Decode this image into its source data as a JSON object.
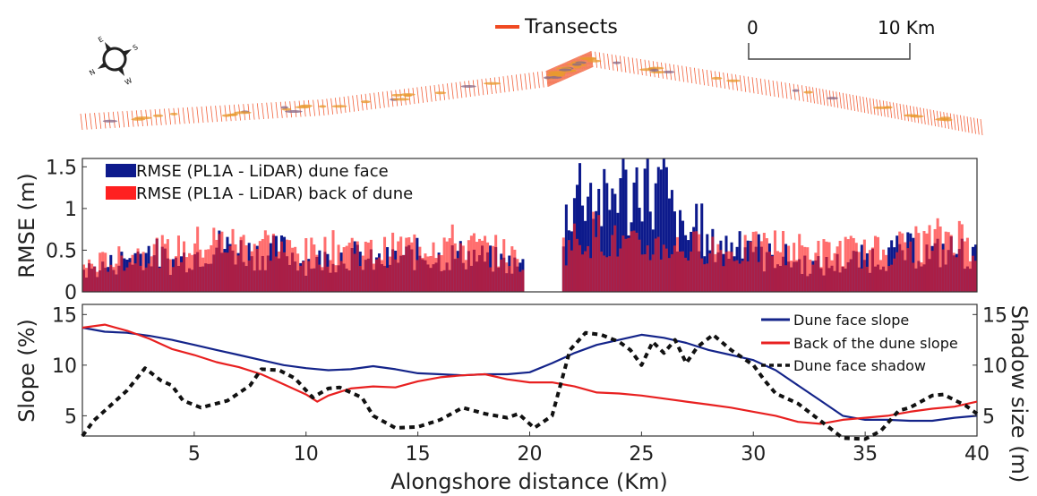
{
  "map": {
    "legend_label": "Transects",
    "legend_color": "#f04a22",
    "scale_zero": "0",
    "scale_ten": "10 Km",
    "compass_labels": {
      "n": "N",
      "e": "E",
      "s": "S",
      "w": "W"
    },
    "compass_icon": "compass-rose-icon"
  },
  "chart_data": [
    {
      "type": "bar",
      "ylabel": "RMSE (m)",
      "ylim": [
        0,
        1.6
      ],
      "yticks": [
        "0",
        "0.5",
        "1",
        "1.5"
      ],
      "xlim": [
        0,
        40
      ],
      "series": [
        {
          "name": "RMSE (PL1A - LiDAR) dune face",
          "color": "#0d1a8c",
          "profile": [
            [
              0,
              0.25
            ],
            [
              1,
              0.3
            ],
            [
              2,
              0.4
            ],
            [
              3,
              0.5
            ],
            [
              4,
              0.35
            ],
            [
              5,
              0.45
            ],
            [
              6,
              0.55
            ],
            [
              7,
              0.5
            ],
            [
              8,
              0.45
            ],
            [
              9,
              0.5
            ],
            [
              10,
              0.35
            ],
            [
              11,
              0.4
            ],
            [
              12,
              0.45
            ],
            [
              13,
              0.35
            ],
            [
              14,
              0.4
            ],
            [
              15,
              0.45
            ],
            [
              16,
              0.4
            ],
            [
              17,
              0.45
            ],
            [
              18,
              0.4
            ],
            [
              19,
              0.35
            ],
            [
              19.6,
              0.3
            ],
            [
              21.5,
              0.8
            ],
            [
              22,
              1.2
            ],
            [
              22.5,
              1.3
            ],
            [
              23,
              1.1
            ],
            [
              23.5,
              1.0
            ],
            [
              24,
              1.4
            ],
            [
              24.5,
              1.0
            ],
            [
              25,
              1.5
            ],
            [
              25.5,
              1.1
            ],
            [
              26,
              1.3
            ],
            [
              26.5,
              0.8
            ],
            [
              27,
              0.6
            ],
            [
              27.5,
              0.9
            ],
            [
              28,
              0.5
            ],
            [
              28.5,
              0.6
            ],
            [
              29,
              0.5
            ],
            [
              29.5,
              0.7
            ],
            [
              30,
              0.6
            ],
            [
              30.5,
              0.4
            ],
            [
              31,
              0.45
            ],
            [
              32,
              0.35
            ],
            [
              33,
              0.3
            ],
            [
              34,
              0.35
            ],
            [
              35,
              0.4
            ],
            [
              36,
              0.45
            ],
            [
              37,
              0.5
            ],
            [
              38,
              0.45
            ],
            [
              39,
              0.5
            ],
            [
              40,
              0.4
            ]
          ]
        },
        {
          "name": "RMSE (PL1A - LiDAR) back of dune",
          "color": "#ff2020",
          "profile": [
            [
              0,
              0.3
            ],
            [
              1,
              0.35
            ],
            [
              2,
              0.4
            ],
            [
              3,
              0.5
            ],
            [
              4,
              0.45
            ],
            [
              5,
              0.55
            ],
            [
              6,
              0.6
            ],
            [
              7,
              0.55
            ],
            [
              8,
              0.6
            ],
            [
              9,
              0.5
            ],
            [
              10,
              0.45
            ],
            [
              11,
              0.5
            ],
            [
              12,
              0.55
            ],
            [
              13,
              0.45
            ],
            [
              14,
              0.5
            ],
            [
              15,
              0.55
            ],
            [
              16,
              0.6
            ],
            [
              17,
              0.55
            ],
            [
              18,
              0.5
            ],
            [
              19,
              0.45
            ],
            [
              19.6,
              0.35
            ],
            [
              21.5,
              0.5
            ],
            [
              22,
              0.6
            ],
            [
              23,
              0.7
            ],
            [
              24,
              0.55
            ],
            [
              25,
              0.5
            ],
            [
              26,
              0.55
            ],
            [
              27,
              0.5
            ],
            [
              28,
              0.55
            ],
            [
              29,
              0.45
            ],
            [
              30,
              0.5
            ],
            [
              31,
              0.55
            ],
            [
              32,
              0.5
            ],
            [
              33,
              0.45
            ],
            [
              34,
              0.5
            ],
            [
              35,
              0.45
            ],
            [
              36,
              0.5
            ],
            [
              37,
              0.55
            ],
            [
              38,
              0.6
            ],
            [
              39,
              0.7
            ],
            [
              40,
              0.5
            ]
          ]
        }
      ],
      "gap": [
        19.7,
        21.4
      ],
      "legend": "top-left"
    },
    {
      "type": "line",
      "xlabel": "Alongshore distance (Km)",
      "ylabel": "Slope (%)",
      "y2label": "Shadow size (m)",
      "xlim": [
        0,
        40
      ],
      "ylim": [
        3,
        16
      ],
      "xticks": [
        "5",
        "10",
        "15",
        "20",
        "25",
        "30",
        "35",
        "40"
      ],
      "yticks": [
        "5",
        "10",
        "15"
      ],
      "y2ticks": [
        "5",
        "10",
        "15"
      ],
      "legend": "top-right",
      "series": [
        {
          "name": "Dune face slope",
          "color": "#14248a",
          "dash": "solid",
          "points": [
            [
              0,
              13.7
            ],
            [
              1,
              13.3
            ],
            [
              2,
              13.2
            ],
            [
              3,
              12.9
            ],
            [
              4,
              12.5
            ],
            [
              5,
              12.0
            ],
            [
              6,
              11.5
            ],
            [
              7,
              11.0
            ],
            [
              8,
              10.5
            ],
            [
              9,
              10.0
            ],
            [
              10,
              9.7
            ],
            [
              11,
              9.5
            ],
            [
              12,
              9.6
            ],
            [
              13,
              9.9
            ],
            [
              14,
              9.6
            ],
            [
              15,
              9.2
            ],
            [
              16,
              9.1
            ],
            [
              17,
              9.0
            ],
            [
              18,
              9.1
            ],
            [
              19,
              9.1
            ],
            [
              20,
              9.3
            ],
            [
              21,
              10.2
            ],
            [
              22,
              11.2
            ],
            [
              23,
              12.0
            ],
            [
              24,
              12.5
            ],
            [
              25,
              13.0
            ],
            [
              26,
              12.7
            ],
            [
              27,
              12.2
            ],
            [
              28,
              11.5
            ],
            [
              29,
              11.0
            ],
            [
              30,
              10.5
            ],
            [
              31,
              9.5
            ],
            [
              32,
              8.0
            ],
            [
              33,
              6.5
            ],
            [
              34,
              5.0
            ],
            [
              35,
              4.6
            ],
            [
              36,
              4.6
            ],
            [
              37,
              4.5
            ],
            [
              38,
              4.5
            ],
            [
              39,
              4.8
            ],
            [
              40,
              5.0
            ]
          ]
        },
        {
          "name": "Back of the dune slope",
          "color": "#e82020",
          "dash": "solid",
          "points": [
            [
              0,
              13.7
            ],
            [
              1,
              14.0
            ],
            [
              2,
              13.4
            ],
            [
              3,
              12.6
            ],
            [
              4,
              11.6
            ],
            [
              5,
              11.0
            ],
            [
              6,
              10.3
            ],
            [
              7,
              9.8
            ],
            [
              8,
              9.1
            ],
            [
              9,
              8.1
            ],
            [
              10,
              7.1
            ],
            [
              10.5,
              6.4
            ],
            [
              11,
              7.0
            ],
            [
              12,
              7.7
            ],
            [
              13,
              7.9
            ],
            [
              14,
              7.8
            ],
            [
              15,
              8.4
            ],
            [
              16,
              8.8
            ],
            [
              17,
              9.0
            ],
            [
              18,
              9.1
            ],
            [
              19,
              8.6
            ],
            [
              20,
              8.3
            ],
            [
              21,
              8.3
            ],
            [
              22,
              7.9
            ],
            [
              23,
              7.3
            ],
            [
              24,
              7.2
            ],
            [
              25,
              7.0
            ],
            [
              26,
              6.7
            ],
            [
              27,
              6.4
            ],
            [
              28,
              6.1
            ],
            [
              29,
              5.8
            ],
            [
              30,
              5.4
            ],
            [
              31,
              5.0
            ],
            [
              32,
              4.4
            ],
            [
              33,
              4.2
            ],
            [
              34,
              4.6
            ],
            [
              35,
              4.8
            ],
            [
              36,
              5.0
            ],
            [
              37,
              5.4
            ],
            [
              38,
              5.7
            ],
            [
              39,
              5.9
            ],
            [
              40,
              6.4
            ]
          ]
        },
        {
          "name": "Dune face shadow",
          "color": "#111111",
          "dash": "dotted",
          "points": [
            [
              0,
              3.0
            ],
            [
              0.5,
              4.5
            ],
            [
              1,
              5.5
            ],
            [
              2,
              7.5
            ],
            [
              2.8,
              9.7
            ],
            [
              3.5,
              8.5
            ],
            [
              4,
              8.0
            ],
            [
              4.5,
              6.5
            ],
            [
              5.3,
              5.8
            ],
            [
              6.5,
              6.5
            ],
            [
              7.5,
              8.0
            ],
            [
              8,
              9.6
            ],
            [
              8.8,
              9.5
            ],
            [
              9.5,
              8.7
            ],
            [
              10.3,
              6.8
            ],
            [
              11,
              7.7
            ],
            [
              11.5,
              7.8
            ],
            [
              12.5,
              6.8
            ],
            [
              13,
              5.0
            ],
            [
              14,
              3.8
            ],
            [
              15,
              3.9
            ],
            [
              16,
              4.6
            ],
            [
              17,
              5.8
            ],
            [
              18,
              5.2
            ],
            [
              19,
              4.8
            ],
            [
              19.5,
              5.2
            ],
            [
              20.2,
              3.8
            ],
            [
              21,
              5.0
            ],
            [
              21.8,
              11.5
            ],
            [
              22.5,
              13.2
            ],
            [
              23.2,
              13.0
            ],
            [
              24,
              12.3
            ],
            [
              24.5,
              11.5
            ],
            [
              25,
              10.0
            ],
            [
              25.5,
              12.3
            ],
            [
              26,
              11.2
            ],
            [
              26.5,
              12.5
            ],
            [
              27,
              10.2
            ],
            [
              27.5,
              11.8
            ],
            [
              28.2,
              13.0
            ],
            [
              29,
              11.5
            ],
            [
              30,
              10.0
            ],
            [
              30.5,
              8.5
            ],
            [
              31,
              7.2
            ],
            [
              32,
              6.2
            ],
            [
              33,
              4.5
            ],
            [
              34,
              2.8
            ],
            [
              35,
              2.7
            ],
            [
              35.7,
              3.5
            ],
            [
              36.5,
              5.5
            ],
            [
              37,
              5.8
            ],
            [
              38,
              7.0
            ],
            [
              38.5,
              7.1
            ],
            [
              39.5,
              6.0
            ],
            [
              40,
              5.2
            ]
          ]
        }
      ]
    }
  ]
}
